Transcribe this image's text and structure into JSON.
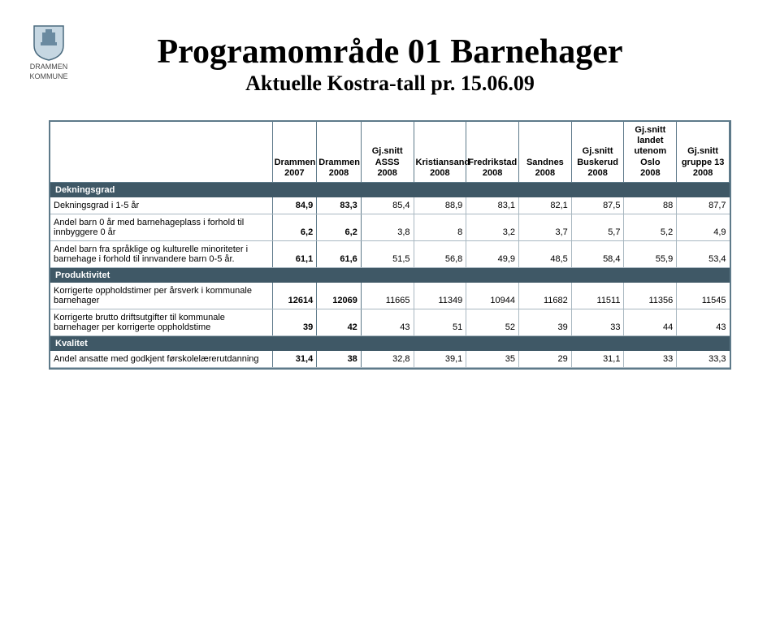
{
  "logo": {
    "line1": "DRAMMEN",
    "line2": "KOMMUNE"
  },
  "title": "Programområde 01 Barnehager",
  "subtitle": "Aktuelle Kostra-tall pr. 15.06.09",
  "columns": [
    {
      "l1": "",
      "l2": "",
      "l3": ""
    },
    {
      "l1": "",
      "l2": "Drammen",
      "l3": "2007"
    },
    {
      "l1": "",
      "l2": "Drammen",
      "l3": "2008"
    },
    {
      "l1": "Gj.snitt",
      "l2": "ASSS",
      "l3": "2008"
    },
    {
      "l1": "",
      "l2": "Kristiansand",
      "l3": "2008"
    },
    {
      "l1": "",
      "l2": "Fredrikstad",
      "l3": "2008"
    },
    {
      "l1": "",
      "l2": "Sandnes",
      "l3": "2008"
    },
    {
      "l1": "Gj.snitt",
      "l2": "Buskerud",
      "l3": "2008"
    },
    {
      "l1": "Gj.snitt",
      "l2": "landet utenom Oslo",
      "l3": "2008"
    },
    {
      "l1": "Gj.snitt",
      "l2": "gruppe 13",
      "l3": "2008"
    }
  ],
  "sections": [
    {
      "header": "Dekningsgrad",
      "rows": [
        {
          "label": "Dekningsgrad  i 1-5 år",
          "cells": [
            "84,9",
            "83,3",
            "85,4",
            "88,9",
            "83,1",
            "82,1",
            "87,5",
            "88",
            "87,7"
          ]
        },
        {
          "label": "Andel barn 0 år med barnehageplass i forhold til innbyggere 0 år",
          "cells": [
            "6,2",
            "6,2",
            "3,8",
            "8",
            "3,2",
            "3,7",
            "5,7",
            "5,2",
            "4,9"
          ]
        },
        {
          "label": "Andel barn fra språklige og kulturelle minoriteter i barnehage i forhold til innvandere barn 0-5 år.",
          "cells": [
            "61,1",
            "61,6",
            "51,5",
            "56,8",
            "49,9",
            "48,5",
            "58,4",
            "55,9",
            "53,4"
          ]
        }
      ]
    },
    {
      "header": "Produktivitet",
      "rows": [
        {
          "label": "Korrigerte oppholdstimer per årsverk i kommunale barnehager",
          "cells": [
            "12614",
            "12069",
            "11665",
            "11349",
            "10944",
            "11682",
            "11511",
            "11356",
            "11545"
          ]
        },
        {
          "label": "Korrigerte brutto driftsutgifter til kommunale barnehager per korrigerte oppholdstime",
          "cells": [
            "39",
            "42",
            "43",
            "51",
            "52",
            "39",
            "33",
            "44",
            "43"
          ]
        }
      ]
    },
    {
      "header": "Kvalitet",
      "rows": [
        {
          "label": "Andel ansatte med godkjent førskolelærerutdanning",
          "cells": [
            "31,4",
            "38",
            "32,8",
            "39,1",
            "35",
            "29",
            "31,1",
            "33",
            "33,3"
          ]
        }
      ]
    }
  ]
}
